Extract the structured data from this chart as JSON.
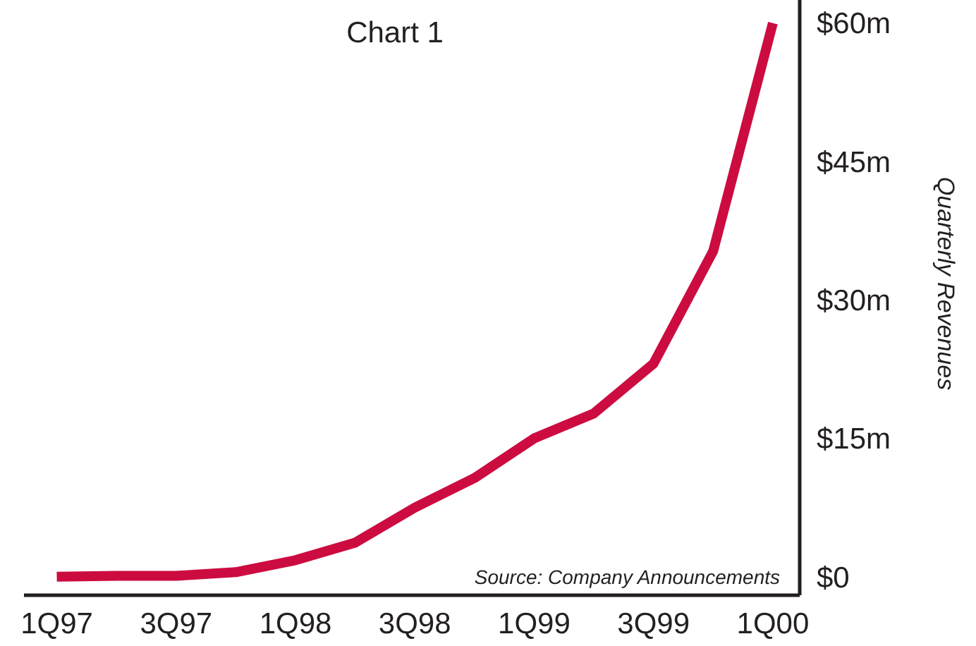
{
  "chart_data": {
    "type": "line",
    "title": "Chart 1",
    "ylabel": "Quarterly Revenues",
    "categories": [
      "1Q97",
      null,
      "3Q97",
      null,
      "1Q98",
      null,
      "3Q98",
      null,
      "1Q99",
      null,
      "3Q99",
      null,
      "1Q00"
    ],
    "series": [
      {
        "color": "#cc0c40",
        "values": [
          0,
          0.1,
          0.1,
          0.5,
          1.8,
          3.7,
          7.5,
          10.7,
          15,
          17.7,
          23.1,
          35.3,
          60
        ]
      }
    ],
    "ylim": [
      -2,
      62.5
    ],
    "yticks": [
      {
        "value": 0,
        "label": "$0"
      },
      {
        "value": 15,
        "label": "$15m"
      },
      {
        "value": 30,
        "label": "$30m"
      },
      {
        "value": 45,
        "label": "$45m"
      },
      {
        "value": 60,
        "label": "$60m"
      }
    ],
    "marker": "none",
    "line_style": "solid",
    "annotations": [
      "Source: Company Announcements"
    ]
  }
}
